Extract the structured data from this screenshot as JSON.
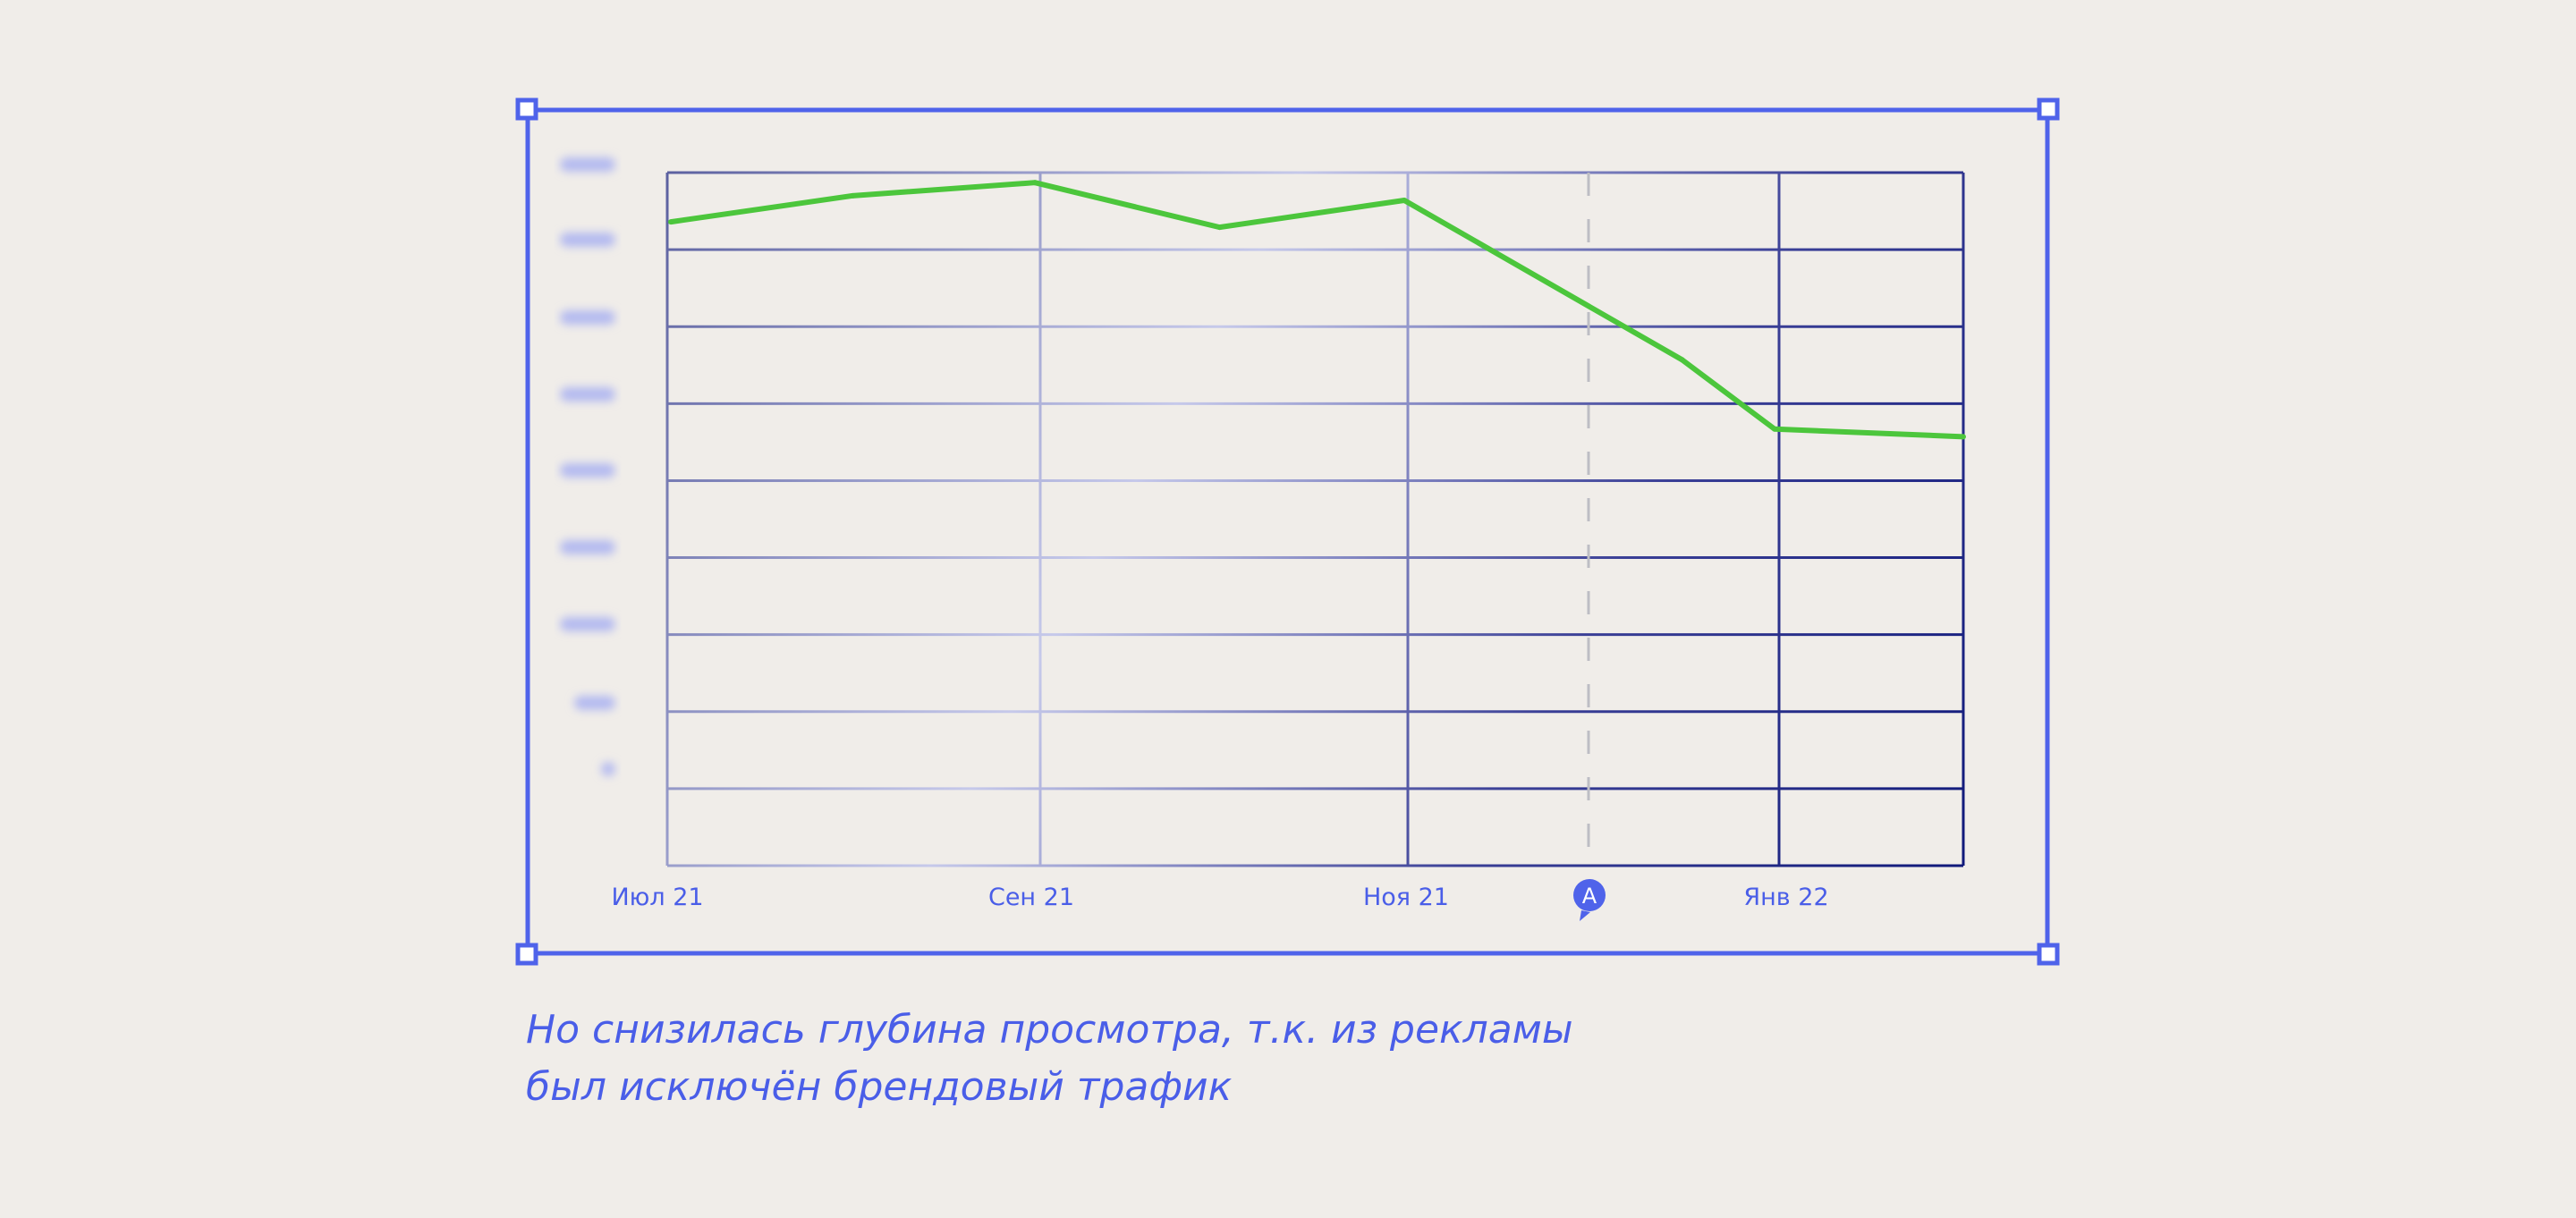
{
  "colors": {
    "frame": "#4f63ea",
    "line": "#4cc63c",
    "grid_light": "#c6c9ea",
    "grid_dark": "#10197a",
    "text": "#4a5ee8",
    "background": "#f0ede9"
  },
  "caption": {
    "line1": "Но снизилась глубина просмотра, т.к. из рекламы",
    "line2": "был исключён брендовый трафик"
  },
  "chart_data": {
    "type": "line",
    "title": "",
    "xlabel": "",
    "ylabel": "",
    "x_tick_labels": [
      "Июл 21",
      "Сен 21",
      "Ноя 21",
      "Янв 22"
    ],
    "y_tick_labels_blurred": true,
    "y_tick_count": 9,
    "grid": true,
    "annotation": {
      "label": "A",
      "position": "between Ноя 21 and Янв 22 (mid-December)",
      "style": "dashed vertical line"
    },
    "series": [
      {
        "x": [
          "Июл 21",
          "Авг 21",
          "Сен 21",
          "Окт 21",
          "Ноя 21",
          "Дек 21 (mid)",
          "Янв 22",
          "Фев 22"
        ],
        "values": [
          8.36,
          8.7,
          8.87,
          8.29,
          8.64,
          6.57,
          5.67,
          5.57
        ]
      }
    ],
    "ylim": [
      0,
      9
    ]
  }
}
